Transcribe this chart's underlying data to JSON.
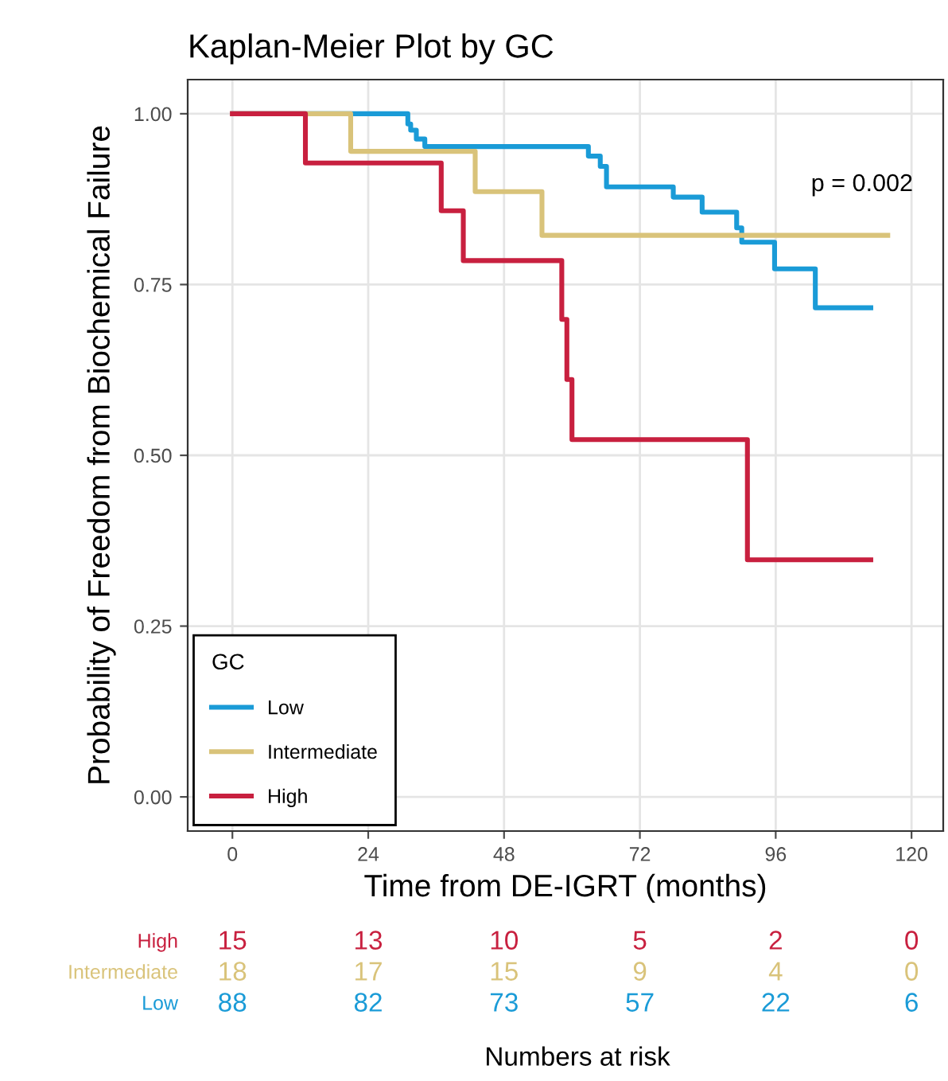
{
  "chart_data": {
    "type": "step",
    "title": "Kaplan-Meier Plot by GC",
    "xlabel": "Time from DE-IGRT (months)",
    "ylabel": "Probability of Freedom from Biochemical Failure",
    "legend_title": "GC",
    "legend": "bottom left",
    "grid": true,
    "xlim": [
      -7.9,
      125.6
    ],
    "ylim": [
      -0.05,
      1.05
    ],
    "xticks": [
      0,
      24,
      48,
      72,
      96,
      120
    ],
    "yticks": [
      {
        "value": 0,
        "label": "0.00"
      },
      {
        "value": 0.25,
        "label": "0.25"
      },
      {
        "value": 0.5,
        "label": "0.50"
      },
      {
        "value": 0.75,
        "label": "0.75"
      },
      {
        "value": 1,
        "label": "1.00"
      }
    ],
    "series": [
      {
        "name": "Low",
        "color": "#1a9bd7",
        "x": [
          0,
          31,
          31.5,
          32.5,
          34,
          42.1,
          62.9,
          65,
          66.1,
          77.9,
          83,
          89.1,
          90,
          95.8,
          103,
          112.8
        ],
        "values": [
          1,
          0.985,
          0.976,
          0.963,
          0.952,
          0.952,
          0.938,
          0.923,
          0.893,
          0.878,
          0.856,
          0.833,
          0.812,
          0.773,
          0.716,
          0.716
        ]
      },
      {
        "name": "Intermediate",
        "color": "#d9c37a",
        "x": [
          0,
          20.9,
          42.9,
          54.7,
          115.8
        ],
        "values": [
          1,
          0.945,
          0.886,
          0.822,
          0.822
        ]
      },
      {
        "name": "High",
        "color": "#c8203f",
        "x": [
          0,
          12.9,
          36.9,
          40.8,
          58.2,
          59.1,
          60,
          91,
          112.8
        ],
        "values": [
          1,
          0.928,
          0.858,
          0.785,
          0.699,
          0.611,
          0.523,
          0.347,
          0.347
        ]
      }
    ],
    "annotations": [
      "p = 0.002",
      "Numbers at risk",
      "High",
      "15",
      "13",
      "10",
      "5",
      "2",
      "0",
      "Intermediate",
      "18",
      "17",
      "15",
      "9",
      "4",
      "0",
      "Low",
      "88",
      "82",
      "73",
      "57",
      "22",
      "6"
    ]
  }
}
